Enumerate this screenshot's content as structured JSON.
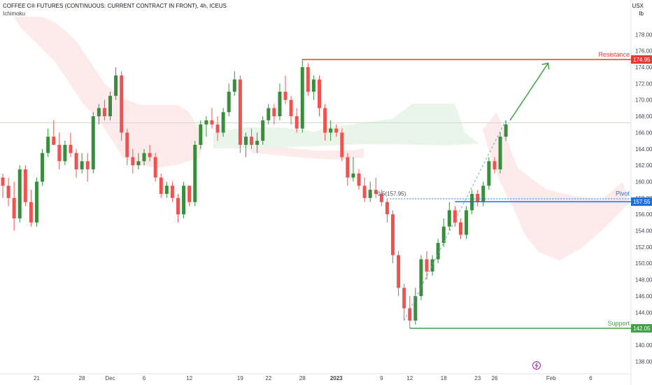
{
  "header": {
    "title": "COFFEE C® FUTURES (CONTINUOUS: CURRENT CONTRACT IN FRONT), 4h, ICEUS",
    "indicator": "Ichimoku"
  },
  "axis_unit": [
    "USX",
    "lb"
  ],
  "colors": {
    "up": "#388e3c",
    "down": "#ef5350",
    "resistance": "#e53935",
    "pivot": "#1e6fd9",
    "support": "#43a047",
    "arrow": "#43a047",
    "cloud_bear": "#fdebec",
    "cloud_bull": "#eaf5ea"
  },
  "chart_data": {
    "type": "candlestick",
    "y_range": [
      137,
      180
    ],
    "y_ticks": [
      138,
      140,
      142,
      144,
      146,
      148,
      150,
      152,
      154,
      156,
      158,
      160,
      162,
      164,
      166,
      168,
      170,
      172,
      174,
      176,
      178
    ],
    "x_ticks": [
      {
        "label": "21",
        "index": 6
      },
      {
        "label": "28",
        "index": 14
      },
      {
        "label": "Dec",
        "index": 19
      },
      {
        "label": "6",
        "index": 25
      },
      {
        "label": "12",
        "index": 33
      },
      {
        "label": "19",
        "index": 42
      },
      {
        "label": "22",
        "index": 47
      },
      {
        "label": "28",
        "index": 53
      },
      {
        "label": "2023",
        "index": 59
      },
      {
        "label": "9",
        "index": 67
      },
      {
        "label": "12",
        "index": 72
      },
      {
        "label": "18",
        "index": 78
      },
      {
        "label": "23",
        "index": 84
      },
      {
        "label": "26",
        "index": 87
      },
      {
        "label": "Feb",
        "index": 97
      },
      {
        "label": "6",
        "index": 104
      }
    ],
    "candles": [
      [
        160.5,
        161.0,
        158.0,
        159.5
      ],
      [
        159.5,
        160.5,
        157.0,
        158.0
      ],
      [
        158.0,
        160.0,
        154.0,
        155.5
      ],
      [
        155.5,
        162.0,
        155.0,
        161.5
      ],
      [
        161.5,
        162.0,
        157.0,
        157.5
      ],
      [
        157.5,
        159.0,
        154.5,
        155.0
      ],
      [
        155.0,
        160.5,
        154.5,
        160.0
      ],
      [
        160.0,
        164.0,
        159.5,
        163.5
      ],
      [
        163.5,
        166.5,
        163.0,
        165.5
      ],
      [
        165.5,
        167.5,
        164.5,
        164.5
      ],
      [
        164.5,
        166.0,
        161.5,
        162.5
      ],
      [
        162.5,
        165.0,
        162.0,
        164.5
      ],
      [
        164.5,
        166.0,
        163.0,
        163.5
      ],
      [
        163.5,
        164.0,
        160.5,
        161.5
      ],
      [
        161.5,
        163.5,
        161.0,
        162.5
      ],
      [
        162.5,
        163.5,
        160.0,
        161.5
      ],
      [
        161.5,
        168.5,
        161.0,
        168.0
      ],
      [
        168.0,
        169.5,
        167.0,
        169.0
      ],
      [
        169.0,
        170.0,
        167.5,
        168.0
      ],
      [
        168.0,
        171.0,
        167.5,
        170.5
      ],
      [
        170.5,
        174.0,
        170.0,
        173.0
      ],
      [
        173.0,
        173.5,
        165.0,
        166.0
      ],
      [
        166.0,
        166.5,
        162.0,
        163.0
      ],
      [
        163.0,
        164.0,
        161.0,
        162.0
      ],
      [
        162.0,
        163.5,
        161.5,
        162.5
      ],
      [
        162.5,
        164.0,
        162.0,
        163.5
      ],
      [
        163.5,
        164.5,
        162.5,
        163.0
      ],
      [
        163.0,
        163.5,
        160.0,
        160.5
      ],
      [
        160.5,
        161.0,
        158.0,
        158.5
      ],
      [
        158.5,
        160.0,
        158.0,
        159.5
      ],
      [
        159.5,
        160.0,
        157.5,
        158.0
      ],
      [
        158.0,
        158.5,
        155.0,
        156.0
      ],
      [
        156.0,
        160.0,
        155.5,
        159.5
      ],
      [
        159.5,
        159.5,
        157.0,
        157.5
      ],
      [
        157.5,
        165.0,
        157.0,
        164.5
      ],
      [
        164.5,
        167.5,
        164.0,
        167.0
      ],
      [
        167.0,
        168.0,
        165.5,
        167.5
      ],
      [
        167.5,
        169.0,
        166.5,
        167.0
      ],
      [
        167.0,
        168.0,
        165.0,
        166.0
      ],
      [
        166.0,
        169.0,
        165.5,
        168.5
      ],
      [
        168.5,
        172.0,
        168.0,
        171.0
      ],
      [
        171.0,
        173.5,
        170.5,
        172.5
      ],
      [
        172.5,
        173.0,
        163.5,
        164.5
      ],
      [
        164.5,
        166.0,
        163.0,
        165.5
      ],
      [
        165.5,
        166.5,
        164.0,
        164.5
      ],
      [
        164.5,
        166.0,
        163.5,
        165.0
      ],
      [
        165.0,
        168.0,
        164.5,
        167.5
      ],
      [
        167.5,
        169.5,
        167.0,
        169.0
      ],
      [
        169.0,
        169.5,
        167.0,
        168.0
      ],
      [
        168.0,
        172.0,
        167.5,
        171.0
      ],
      [
        171.0,
        173.0,
        169.5,
        170.0
      ],
      [
        170.0,
        170.5,
        167.0,
        168.0
      ],
      [
        168.0,
        169.0,
        166.0,
        166.5
      ],
      [
        166.5,
        175.0,
        166.0,
        174.0
      ],
      [
        174.0,
        174.5,
        170.5,
        171.0
      ],
      [
        171.0,
        173.0,
        170.0,
        172.5
      ],
      [
        172.5,
        173.0,
        168.0,
        169.0
      ],
      [
        169.0,
        169.5,
        165.0,
        166.0
      ],
      [
        166.0,
        167.5,
        165.0,
        166.5
      ],
      [
        166.5,
        167.0,
        165.5,
        166.0
      ],
      [
        166.0,
        166.5,
        162.5,
        163.0
      ],
      [
        163.0,
        163.5,
        159.5,
        160.5
      ],
      [
        160.5,
        163.0,
        160.0,
        161.0
      ],
      [
        161.0,
        161.5,
        159.0,
        159.5
      ],
      [
        159.5,
        160.5,
        157.5,
        158.0
      ],
      [
        158.0,
        160.0,
        157.5,
        159.0
      ],
      [
        159.0,
        160.5,
        158.0,
        158.5
      ],
      [
        158.5,
        159.0,
        157.0,
        157.5
      ],
      [
        157.5,
        158.0,
        155.0,
        156.0
      ],
      [
        156.0,
        156.5,
        150.0,
        151.0
      ],
      [
        151.0,
        151.5,
        146.0,
        147.0
      ],
      [
        147.0,
        147.5,
        143.0,
        144.5
      ],
      [
        144.5,
        146.0,
        142.05,
        143.0
      ],
      [
        143.0,
        147.0,
        142.5,
        146.0
      ],
      [
        146.0,
        151.0,
        145.5,
        150.5
      ],
      [
        150.5,
        151.5,
        148.0,
        149.0
      ],
      [
        149.0,
        151.0,
        148.5,
        150.5
      ],
      [
        150.5,
        153.0,
        150.0,
        152.5
      ],
      [
        152.5,
        155.5,
        152.0,
        154.5
      ],
      [
        154.5,
        157.5,
        154.0,
        156.5
      ],
      [
        156.5,
        157.0,
        154.5,
        155.0
      ],
      [
        155.0,
        155.5,
        153.0,
        153.5
      ],
      [
        153.5,
        157.0,
        153.0,
        156.5
      ],
      [
        156.5,
        159.0,
        156.0,
        158.5
      ],
      [
        158.5,
        159.0,
        157.0,
        157.5
      ],
      [
        157.5,
        160.0,
        157.0,
        159.5
      ],
      [
        159.5,
        163.0,
        159.0,
        162.5
      ],
      [
        162.5,
        163.0,
        161.0,
        161.5
      ],
      [
        161.5,
        166.0,
        161.0,
        165.5
      ],
      [
        165.5,
        167.5,
        165.0,
        167.0
      ]
    ],
    "annotations": {
      "resistance": {
        "label": "Resistance",
        "value": 174.95,
        "tag": "174.95",
        "from_index": 53
      },
      "pivot": {
        "label": "Pivot",
        "value": 157.55,
        "tag": "157.55",
        "fib_text": "0.5(157.95)",
        "from_index": 67
      },
      "support": {
        "label": "Support",
        "value": 142.05,
        "tag": "142.05",
        "from_index": 72
      },
      "projection": {
        "from_index": 89,
        "from_value": 167.5,
        "to_index": 95,
        "to_value": 174.5
      },
      "trendline": {
        "from_index": 71,
        "from_value": 143.0,
        "to_index": 89,
        "to_value": 167.5
      }
    }
  }
}
